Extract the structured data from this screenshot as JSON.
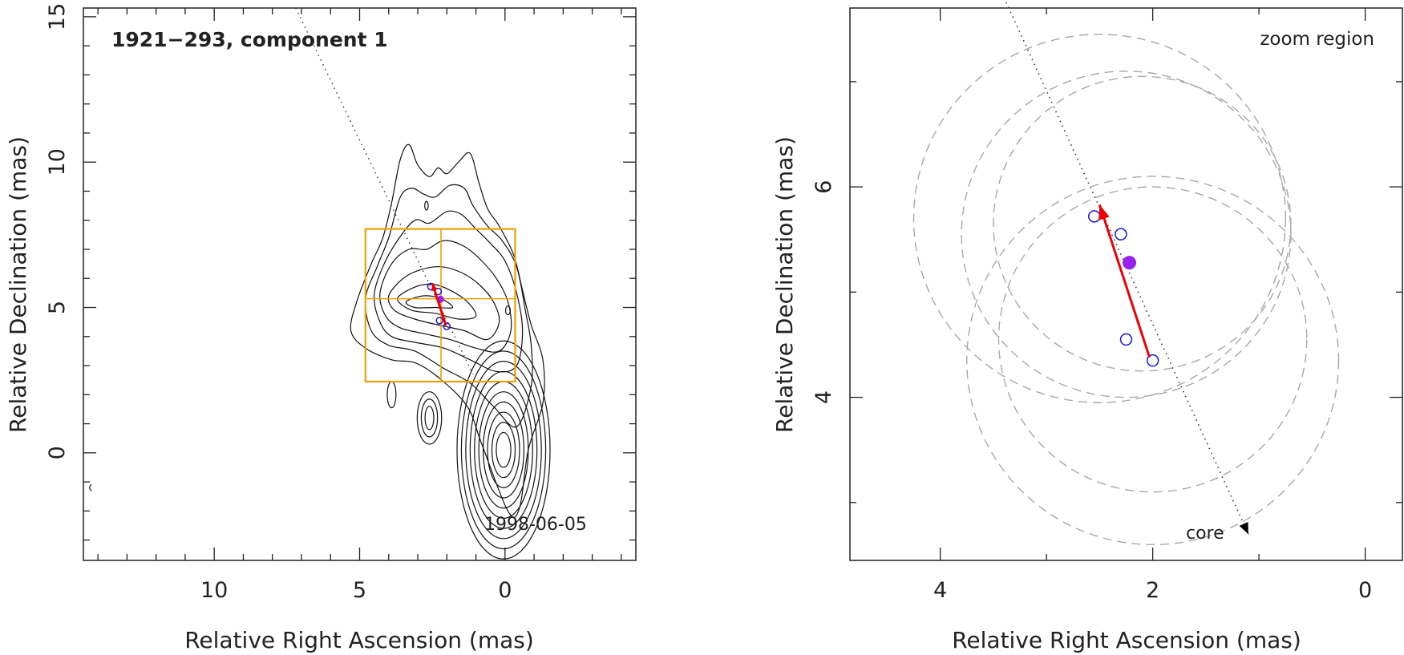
{
  "chart_data": [
    {
      "type": "scatter",
      "panel": "left",
      "title": "1921−293, component 1",
      "epoch_label": "1998-06-05",
      "xlabel": "Relative Right Ascension (mas)",
      "ylabel": "Relative Declination (mas)",
      "xlim": [
        14.5,
        -4.5
      ],
      "ylim": [
        -3.7,
        15.3
      ],
      "xticks": [
        10,
        5,
        0
      ],
      "xtick_labels": [
        "10",
        "5",
        "0"
      ],
      "yticks": [
        0,
        5,
        10,
        15
      ],
      "ytick_labels": [
        "0",
        "5",
        "10",
        "15"
      ],
      "x_minor_step": 1,
      "y_minor_step": 1,
      "contours": {
        "center": [
          0.05,
          0.1
        ],
        "x_radii": [
          0.25,
          0.4,
          0.55,
          0.7,
          0.85,
          1.0,
          1.15,
          1.3,
          1.45,
          1.6
        ],
        "y_radii": [
          0.6,
          0.95,
          1.3,
          1.65,
          2.0,
          2.35,
          2.7,
          3.05,
          3.4,
          3.75
        ]
      },
      "jet_contours": [
        [
          [
            5.1,
            5.2
          ],
          [
            4.6,
            6.5
          ],
          [
            4.2,
            7.4
          ],
          [
            3.9,
            8.6
          ],
          [
            3.6,
            10.1
          ],
          [
            3.3,
            10.6
          ],
          [
            3.0,
            9.9
          ],
          [
            2.6,
            9.5
          ],
          [
            2.3,
            9.8
          ],
          [
            2.0,
            9.6
          ],
          [
            1.6,
            10.0
          ],
          [
            1.2,
            10.3
          ],
          [
            0.9,
            9.3
          ],
          [
            0.6,
            8.4
          ],
          [
            0.2,
            7.8
          ],
          [
            -0.3,
            6.8
          ],
          [
            -0.6,
            5.6
          ],
          [
            -0.9,
            4.4
          ],
          [
            -1.3,
            3.2
          ],
          [
            -1.3,
            1.7
          ],
          [
            -0.8,
            0.1
          ],
          [
            -0.5,
            -1.9
          ],
          [
            -0.1,
            -2.0
          ],
          [
            0.8,
            0.3
          ],
          [
            1.3,
            1.6
          ],
          [
            2.3,
            2.6
          ],
          [
            3.1,
            3.1
          ],
          [
            3.9,
            3.2
          ],
          [
            4.8,
            3.6
          ],
          [
            5.3,
            4.2
          ]
        ],
        [
          [
            4.8,
            5.3
          ],
          [
            4.4,
            6.4
          ],
          [
            4.0,
            7.4
          ],
          [
            3.6,
            8.8
          ],
          [
            3.2,
            9.1
          ],
          [
            2.8,
            8.9
          ],
          [
            2.4,
            8.8
          ],
          [
            1.9,
            9.2
          ],
          [
            1.4,
            9.1
          ],
          [
            1.1,
            8.5
          ],
          [
            0.6,
            7.8
          ],
          [
            0.1,
            7.3
          ],
          [
            -0.4,
            6.4
          ],
          [
            -0.7,
            4.9
          ],
          [
            -0.9,
            3.7
          ],
          [
            -0.9,
            2.3
          ],
          [
            -0.4,
            0.9
          ],
          [
            0.4,
            1.6
          ],
          [
            1.2,
            2.4
          ],
          [
            2.1,
            2.9
          ],
          [
            3.1,
            3.5
          ],
          [
            4.0,
            3.7
          ],
          [
            4.6,
            4.2
          ]
        ],
        [
          [
            4.5,
            5.4
          ],
          [
            4.2,
            6.4
          ],
          [
            3.7,
            7.3
          ],
          [
            3.1,
            8.0
          ],
          [
            2.6,
            7.9
          ],
          [
            2.0,
            8.3
          ],
          [
            1.5,
            8.2
          ],
          [
            1.0,
            7.7
          ],
          [
            0.5,
            7.2
          ],
          [
            0.0,
            6.6
          ],
          [
            -0.4,
            5.5
          ],
          [
            -0.6,
            4.2
          ],
          [
            -0.4,
            3.0
          ],
          [
            0.3,
            2.8
          ],
          [
            1.2,
            3.2
          ],
          [
            2.1,
            3.6
          ],
          [
            3.1,
            3.8
          ],
          [
            3.9,
            4.0
          ],
          [
            4.3,
            4.5
          ]
        ],
        [
          [
            4.3,
            5.5
          ],
          [
            3.9,
            6.5
          ],
          [
            3.3,
            7.0
          ],
          [
            2.7,
            7.0
          ],
          [
            2.1,
            7.3
          ],
          [
            1.4,
            7.1
          ],
          [
            0.8,
            6.6
          ],
          [
            0.3,
            6.0
          ],
          [
            -0.1,
            5.2
          ],
          [
            -0.2,
            4.2
          ],
          [
            0.2,
            3.5
          ],
          [
            1.0,
            3.6
          ],
          [
            1.9,
            3.9
          ],
          [
            2.8,
            4.1
          ],
          [
            3.6,
            4.3
          ],
          [
            4.1,
            4.7
          ]
        ],
        [
          [
            4.0,
            5.4
          ],
          [
            3.5,
            6.0
          ],
          [
            2.9,
            6.3
          ],
          [
            2.2,
            6.4
          ],
          [
            1.5,
            6.2
          ],
          [
            0.9,
            5.8
          ],
          [
            0.4,
            5.2
          ],
          [
            0.2,
            4.5
          ],
          [
            0.6,
            3.9
          ],
          [
            1.4,
            4.2
          ],
          [
            2.3,
            4.4
          ],
          [
            3.1,
            4.6
          ],
          [
            3.8,
            4.9
          ]
        ],
        [
          [
            3.7,
            5.3
          ],
          [
            3.1,
            5.7
          ],
          [
            2.5,
            5.8
          ],
          [
            1.9,
            5.6
          ],
          [
            1.3,
            5.2
          ],
          [
            1.0,
            4.7
          ],
          [
            1.6,
            4.6
          ],
          [
            2.4,
            4.8
          ],
          [
            3.2,
            4.9
          ]
        ],
        [
          [
            3.4,
            5.2
          ],
          [
            2.8,
            5.4
          ],
          [
            2.2,
            5.3
          ],
          [
            1.8,
            5.0
          ],
          [
            2.4,
            5.0
          ],
          [
            3.1,
            5.0
          ]
        ]
      ],
      "small_contours": [
        {
          "cx": 2.6,
          "cy": 1.2,
          "rx": [
            0.15,
            0.28,
            0.42
          ],
          "ry": [
            0.4,
            0.65,
            0.9
          ]
        },
        {
          "cx": 3.9,
          "cy": 2.0,
          "rx": [
            0.15
          ],
          "ry": [
            0.45
          ]
        },
        {
          "cx": -0.1,
          "cy": 4.9,
          "rx": [
            0.08
          ],
          "ry": [
            0.15
          ]
        },
        {
          "cx": 2.7,
          "cy": 8.5,
          "rx": [
            0.06
          ],
          "ry": [
            0.15
          ]
        }
      ],
      "zoom_box": {
        "ra": [
          4.8,
          -0.35
        ],
        "dec": [
          2.45,
          7.7
        ],
        "ra_div": 2.2,
        "dec_div": 5.3
      },
      "dotted_line": {
        "from": [
          7.2,
          15.3
        ],
        "to": [
          1.1,
          2.7
        ]
      },
      "positions_ra": [
        2.55,
        2.3,
        2.0,
        2.25
      ],
      "positions_dec": [
        5.72,
        5.55,
        4.35,
        4.55
      ],
      "mean_position": [
        2.22,
        5.28
      ],
      "motion_arrow": {
        "from": [
          2.03,
          4.38
        ],
        "to": [
          2.5,
          5.83
        ]
      },
      "edge_mark": [
        14.3,
        -1.2
      ]
    },
    {
      "type": "scatter",
      "panel": "right",
      "annotation": "zoom region",
      "core_label": "core",
      "xlabel": "Relative Right Ascension (mas)",
      "ylabel": "Relative Declination (mas)",
      "xlim": [
        4.85,
        -0.35
      ],
      "ylim": [
        2.45,
        7.7
      ],
      "xticks": [
        4,
        2,
        0
      ],
      "xtick_labels": [
        "4",
        "2",
        "0"
      ],
      "yticks": [
        4,
        6
      ],
      "ytick_labels": [
        "4",
        "6"
      ],
      "x_minor_step": 1,
      "y_minor_step": 1,
      "beam_circles": [
        {
          "ra": 2.5,
          "dec": 5.7,
          "r": 1.75
        },
        {
          "ra": 2.25,
          "dec": 5.55,
          "r": 1.55
        },
        {
          "ra": 2.1,
          "dec": 5.65,
          "r": 1.4
        },
        {
          "ra": 2.0,
          "dec": 4.35,
          "r": 1.75
        },
        {
          "ra": 2.0,
          "dec": 4.55,
          "r": 1.45
        }
      ],
      "dotted_line": {
        "from": [
          3.4,
          7.8
        ],
        "to": [
          1.1,
          2.7
        ]
      },
      "positions_ra": [
        2.55,
        2.3,
        2.0,
        2.25
      ],
      "positions_dec": [
        5.72,
        5.55,
        4.35,
        4.55
      ],
      "mean_position": [
        2.22,
        5.28
      ],
      "motion_arrow": {
        "from": [
          2.03,
          4.38
        ],
        "to": [
          2.5,
          5.83
        ]
      }
    }
  ],
  "colors": {
    "axis": "#222222",
    "contour": "#111111",
    "box": "#f0a000",
    "arrow": "#ee0000",
    "circle": "#1515dd",
    "mean": "#9922ee",
    "beam": "#a8a8a8",
    "dotted": "#333333"
  }
}
